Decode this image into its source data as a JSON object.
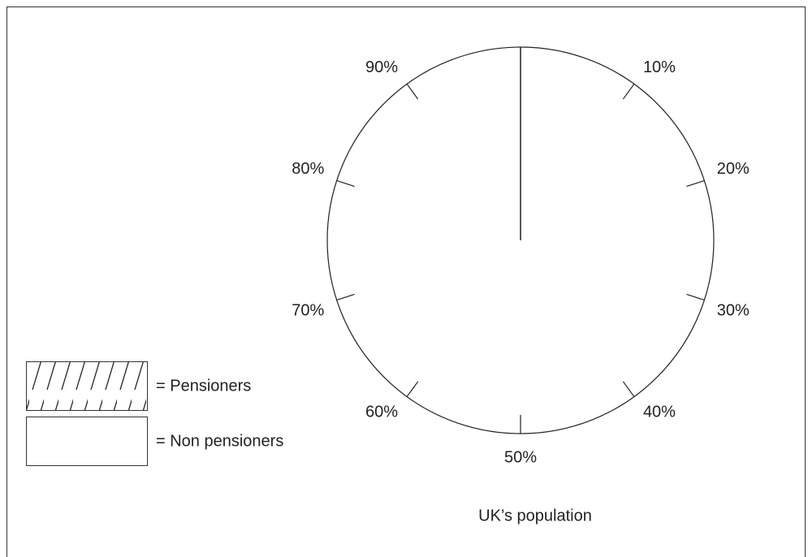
{
  "chart_data": {
    "type": "pie",
    "rlim": [
      0,
      100
    ],
    "ticks": [
      {
        "value": 10,
        "label": "10%"
      },
      {
        "value": 20,
        "label": "20%"
      },
      {
        "value": 30,
        "label": "30%"
      },
      {
        "value": 40,
        "label": "40%"
      },
      {
        "value": 50,
        "label": "50%"
      },
      {
        "value": 60,
        "label": "60%"
      },
      {
        "value": 70,
        "label": "70%"
      },
      {
        "value": 80,
        "label": "80%"
      },
      {
        "value": 90,
        "label": "90%"
      }
    ],
    "legend": [
      {
        "label": "= Pensioners",
        "pattern": "hatch"
      },
      {
        "label": "= Non pensioners",
        "pattern": "none"
      }
    ],
    "caption": "UK’s population"
  }
}
